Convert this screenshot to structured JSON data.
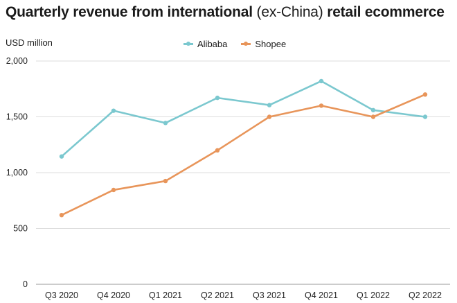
{
  "title_main": "Quarterly revenue from international",
  "title_paren": "(ex-China)",
  "title_tail": "retail ecommerce",
  "chart_data": {
    "type": "line",
    "title": "Quarterly revenue from international (ex-China) retail ecommerce",
    "ylabel": "USD million",
    "xlabel": "",
    "categories": [
      "Q3 2020",
      "Q4 2020",
      "Q1 2021",
      "Q2 2021",
      "Q3 2021",
      "Q4 2021",
      "Q1 2022",
      "Q2 2022"
    ],
    "ylim": [
      0,
      2000
    ],
    "yticks": [
      0,
      500,
      1000,
      1500,
      2000
    ],
    "ytick_labels": [
      "0",
      "500",
      "1,000",
      "1,500",
      "2,000"
    ],
    "grid": true,
    "legend": "top-center",
    "series": [
      {
        "name": "Alibaba",
        "color": "#7bc8cf",
        "values": [
          1145,
          1555,
          1445,
          1670,
          1605,
          1820,
          1560,
          1500
        ]
      },
      {
        "name": "Shopee",
        "color": "#e8955a",
        "values": [
          620,
          845,
          925,
          1200,
          1500,
          1600,
          1500,
          1700
        ]
      }
    ]
  }
}
